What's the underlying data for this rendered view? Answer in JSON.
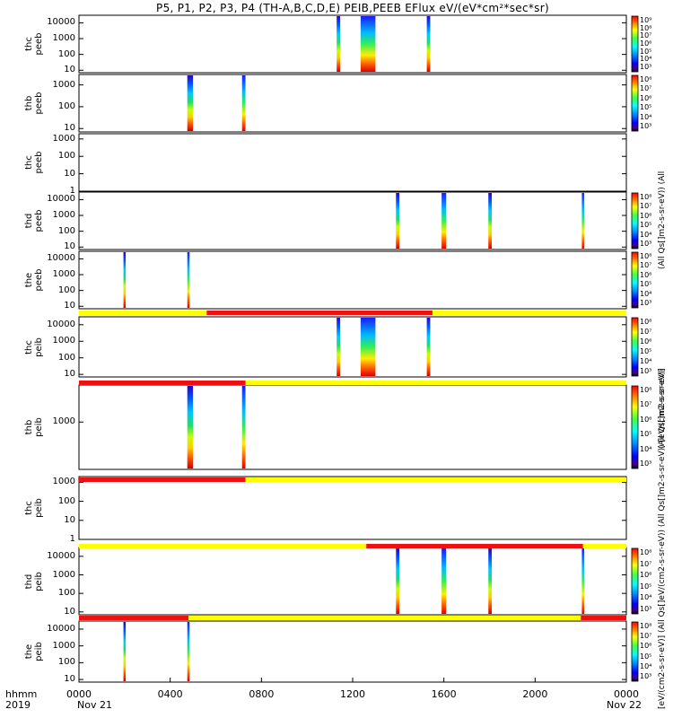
{
  "title": "P5, P1, P2, P3, P4 (TH-A,B,C,D,E) PEIB,PEEB EFlux eV/(eV*cm²*sec*sr)",
  "axis": {
    "x_label_line1": "hhmm",
    "x_label_line2": "2019",
    "x_ticks": [
      "0000",
      "0400",
      "0800",
      "1200",
      "1600",
      "2000",
      "0000"
    ],
    "x_date_start": "Nov 21",
    "x_date_end": "Nov 22"
  },
  "colors": {
    "mode_red": "#ee1111",
    "mode_yellow": "#ffff00"
  },
  "chart_data": {
    "type": "heatmap",
    "x_unit": "hours since 2019-11-21 00:00",
    "xlim": [
      0,
      24
    ],
    "panels": [
      {
        "id": "thc-peeb",
        "label_line1": "thc",
        "label_line2": "peeb",
        "yticks": [
          "10",
          "100",
          "1000",
          "10000"
        ],
        "ylim": [
          7,
          30000
        ],
        "bursts": [
          [
            11.3,
            11.45
          ],
          [
            12.35,
            13.0
          ],
          [
            15.25,
            15.4
          ]
        ],
        "colorbar": [
          "10⁹",
          "10⁸",
          "10⁷",
          "10⁶",
          "10⁵",
          "10⁴",
          "10³"
        ]
      },
      {
        "id": "thb-peeb",
        "label_line1": "thb",
        "label_line2": "peeb",
        "yticks": [
          "10",
          "100",
          "1000"
        ],
        "ylim": [
          7,
          3000
        ],
        "bursts": [
          [
            4.75,
            5.0
          ],
          [
            7.15,
            7.3
          ]
        ],
        "colorbar": [
          "10⁸",
          "10⁷",
          "10⁶",
          "10⁵",
          "10⁴",
          "10³"
        ]
      },
      {
        "id": "thc-peeb-empty",
        "label_line1": "thc",
        "label_line2": "peeb",
        "yticks": [
          "1",
          "10",
          "100",
          "1000"
        ],
        "ylim": [
          1,
          2000
        ],
        "bursts": [],
        "colorbar": []
      },
      {
        "id": "thd-peeb",
        "label_line1": "thd",
        "label_line2": "peeb",
        "yticks": [
          "10",
          "100",
          "1000",
          "10000"
        ],
        "ylim": [
          7,
          30000
        ],
        "bursts": [
          [
            13.9,
            14.05
          ],
          [
            15.9,
            16.1
          ],
          [
            17.95,
            18.1
          ],
          [
            22.05,
            22.15
          ]
        ],
        "colorbar": [
          "10⁸",
          "10⁷",
          "10⁶",
          "10⁵",
          "10⁴",
          "10³"
        ]
      },
      {
        "id": "the-peeb",
        "label_line1": "the",
        "label_line2": "peeb",
        "yticks": [
          "10",
          "100",
          "1000",
          "10000"
        ],
        "ylim": [
          7,
          30000
        ],
        "bursts": [
          [
            1.95,
            2.05
          ],
          [
            4.75,
            4.85
          ]
        ],
        "colorbar": [
          "10⁸",
          "10⁷",
          "10⁶",
          "10⁵",
          "10⁴",
          "10³"
        ]
      },
      {
        "id": "thc-peib",
        "label_line1": "thc",
        "label_line2": "peib",
        "yticks": [
          "10",
          "100",
          "1000",
          "10000"
        ],
        "ylim": [
          7,
          30000
        ],
        "bursts": [
          [
            11.3,
            11.45
          ],
          [
            12.35,
            13.0
          ],
          [
            15.25,
            15.4
          ]
        ],
        "mode_bar": [
          [
            "yellow",
            0,
            5.6
          ],
          [
            "red",
            5.6,
            15.5
          ],
          [
            "yellow",
            15.5,
            24
          ]
        ],
        "colorbar": [
          "10⁸",
          "10⁷",
          "10⁶",
          "10⁵",
          "10⁴",
          "10³"
        ]
      },
      {
        "id": "thb-peib",
        "label_line1": "thb",
        "label_line2": "peib",
        "yticks": [
          "1000"
        ],
        "ylim": [
          70,
          8000
        ],
        "bursts": [
          [
            4.75,
            5.0
          ],
          [
            7.15,
            7.3
          ]
        ],
        "mode_bar": [
          [
            "red",
            0,
            7.3
          ],
          [
            "yellow",
            7.3,
            24
          ]
        ],
        "colorbar": [
          "10⁸",
          "10⁷",
          "10⁶",
          "10⁵",
          "10⁴",
          "10³"
        ]
      },
      {
        "id": "thc-peib-empty",
        "label_line1": "thc",
        "label_line2": "peib",
        "yticks": [
          "1",
          "10",
          "100",
          "1000"
        ],
        "ylim": [
          1,
          2000
        ],
        "bursts": [],
        "mode_bar": [
          [
            "red",
            0,
            7.3
          ],
          [
            "yellow",
            7.3,
            24
          ]
        ],
        "colorbar": []
      },
      {
        "id": "thd-peib",
        "label_line1": "thd",
        "label_line2": "peib",
        "yticks": [
          "10",
          "100",
          "1000",
          "10000"
        ],
        "ylim": [
          7,
          30000
        ],
        "bursts": [
          [
            13.9,
            14.05
          ],
          [
            15.9,
            16.1
          ],
          [
            17.95,
            18.1
          ],
          [
            22.05,
            22.15
          ]
        ],
        "mode_bar": [
          [
            "yellow",
            0,
            12.6
          ],
          [
            "red",
            12.6,
            22.1
          ],
          [
            "yellow",
            22.1,
            24
          ]
        ],
        "colorbar": [
          "10⁸",
          "10⁷",
          "10⁶",
          "10⁵",
          "10⁴",
          "10³"
        ]
      },
      {
        "id": "the-peib",
        "label_line1": "the",
        "label_line2": "peib",
        "yticks": [
          "10",
          "100",
          "1000",
          "10000"
        ],
        "ylim": [
          7,
          30000
        ],
        "bursts": [
          [
            1.95,
            2.05
          ],
          [
            4.75,
            4.85
          ]
        ],
        "mode_bar": [
          [
            "red",
            0,
            4.8
          ],
          [
            "yellow",
            4.8,
            22.0
          ],
          [
            "red",
            22.0,
            24
          ]
        ],
        "colorbar": [
          "10⁸",
          "10⁷",
          "10⁶",
          "10⁵",
          "10⁴",
          "10³"
        ]
      }
    ],
    "colorbar_labels": [
      "(All Qs[]m2-s-sr-eV)) (All",
      "(All Qs[]m2-s-sr-eV)",
      "[eV/(cm2-s-sr-eV)] (All Qs[]eV/(cm2-s-sr-eV)) (All Qs[]m2-s-sr-eV)) [eV/(cm2-s-sr-eV)]"
    ]
  }
}
